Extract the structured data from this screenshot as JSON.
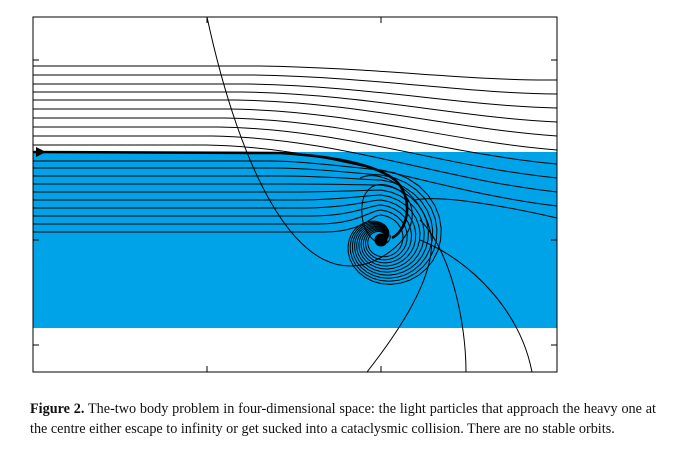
{
  "figure": {
    "band_color": "#00A2E8",
    "line_color": "#000000",
    "frame_color": "#000000"
  },
  "caption": {
    "label": "Figure 2.",
    "text": "The-two body problem in four-dimensional space: the light particles that approach the heavy one at the centre either escape to infinity or get sucked into a cataclysmic collision. There are no stable orbits."
  }
}
